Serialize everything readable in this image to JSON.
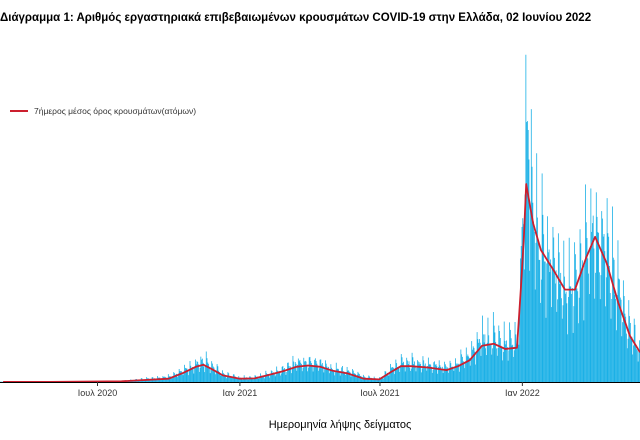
{
  "title": "Διάγραμμα 1: Αριθμός εργαστηριακά επιβεβαιωμένων κρουσμάτων COVID-19 στην Ελλάδα, 02 Ιουνίου 2022",
  "colors": {
    "bars": "#1ab0e6",
    "line": "#cc1f2e",
    "axis": "#000000"
  },
  "chart_data": {
    "type": "bar",
    "title": "Διάγραμμα 1: Αριθμός εργαστηριακά επιβεβαιωμένων κρουσμάτων COVID-19 στην Ελλάδα, 02 Ιουνίου 2022",
    "xlabel": "Ημερομηνία λήψης δείγματος",
    "ylabel": "",
    "x_range": [
      "2020-02-26",
      "2022-06-02"
    ],
    "ylim": [
      0,
      50000
    ],
    "grid": false,
    "legend_placement": "top-left",
    "x_ticks": [
      {
        "date": "2020-07-01",
        "label": "Ιουλ 2020"
      },
      {
        "date": "2021-01-01",
        "label": "Ιαν 2021"
      },
      {
        "date": "2021-07-01",
        "label": "Ιουλ 2021"
      },
      {
        "date": "2022-01-01",
        "label": "Ιαν 2022"
      }
    ],
    "series": [
      {
        "name": "",
        "kind": "daily_bars",
        "points": [
          [
            "2020-03-01",
            40
          ],
          [
            "2020-05-01",
            20
          ],
          [
            "2020-08-01",
            150
          ],
          [
            "2020-10-01",
            800
          ],
          [
            "2020-10-20",
            1800
          ],
          [
            "2020-11-05",
            2700
          ],
          [
            "2020-11-15",
            3200
          ],
          [
            "2020-11-25",
            2500
          ],
          [
            "2020-12-10",
            1300
          ],
          [
            "2021-01-01",
            650
          ],
          [
            "2021-01-20",
            700
          ],
          [
            "2021-02-05",
            1200
          ],
          [
            "2021-02-25",
            1900
          ],
          [
            "2021-03-15",
            2900
          ],
          [
            "2021-03-30",
            3000
          ],
          [
            "2021-04-15",
            2800
          ],
          [
            "2021-05-01",
            2100
          ],
          [
            "2021-05-20",
            1700
          ],
          [
            "2021-06-10",
            800
          ],
          [
            "2021-06-30",
            500
          ],
          [
            "2021-07-15",
            2000
          ],
          [
            "2021-07-28",
            2900
          ],
          [
            "2021-08-10",
            2900
          ],
          [
            "2021-09-01",
            2700
          ],
          [
            "2021-09-25",
            2300
          ],
          [
            "2021-10-10",
            3000
          ],
          [
            "2021-10-25",
            4200
          ],
          [
            "2021-11-10",
            6600
          ],
          [
            "2021-11-25",
            7000
          ],
          [
            "2021-12-10",
            5800
          ],
          [
            "2021-12-25",
            6500
          ],
          [
            "2021-12-30",
            18000
          ],
          [
            "2022-01-03",
            30000
          ],
          [
            "2022-01-06",
            40000
          ],
          [
            "2022-01-15",
            27000
          ],
          [
            "2022-01-25",
            21000
          ],
          [
            "2022-02-10",
            19000
          ],
          [
            "2022-02-25",
            14000
          ],
          [
            "2022-03-10",
            15000
          ],
          [
            "2022-03-25",
            21000
          ],
          [
            "2022-04-05",
            24000
          ],
          [
            "2022-04-20",
            20000
          ],
          [
            "2022-05-05",
            14000
          ],
          [
            "2022-05-20",
            8000
          ],
          [
            "2022-06-02",
            5000
          ]
        ]
      },
      {
        "name": "7ήμερος μέσος όρος κρουσμάτων(ατόμων)",
        "kind": "line",
        "points": [
          [
            "2020-03-01",
            20
          ],
          [
            "2020-05-01",
            10
          ],
          [
            "2020-08-01",
            100
          ],
          [
            "2020-10-01",
            500
          ],
          [
            "2020-10-20",
            1400
          ],
          [
            "2020-11-05",
            2300
          ],
          [
            "2020-11-15",
            2600
          ],
          [
            "2020-11-25",
            2000
          ],
          [
            "2020-12-10",
            1000
          ],
          [
            "2021-01-01",
            500
          ],
          [
            "2021-01-20",
            550
          ],
          [
            "2021-02-05",
            1000
          ],
          [
            "2021-02-25",
            1600
          ],
          [
            "2021-03-15",
            2300
          ],
          [
            "2021-03-30",
            2500
          ],
          [
            "2021-04-15",
            2300
          ],
          [
            "2021-05-01",
            1700
          ],
          [
            "2021-05-20",
            1300
          ],
          [
            "2021-06-10",
            500
          ],
          [
            "2021-06-30",
            400
          ],
          [
            "2021-07-15",
            1500
          ],
          [
            "2021-07-28",
            2400
          ],
          [
            "2021-08-10",
            2400
          ],
          [
            "2021-09-01",
            2200
          ],
          [
            "2021-09-25",
            1800
          ],
          [
            "2021-10-10",
            2400
          ],
          [
            "2021-10-25",
            3300
          ],
          [
            "2021-11-10",
            5500
          ],
          [
            "2021-11-25",
            5800
          ],
          [
            "2021-12-10",
            5000
          ],
          [
            "2021-12-25",
            5200
          ],
          [
            "2021-12-30",
            14000
          ],
          [
            "2022-01-03",
            22000
          ],
          [
            "2022-01-06",
            30000
          ],
          [
            "2022-01-15",
            24000
          ],
          [
            "2022-01-25",
            20000
          ],
          [
            "2022-02-10",
            17000
          ],
          [
            "2022-02-25",
            14000
          ],
          [
            "2022-03-10",
            14000
          ],
          [
            "2022-03-25",
            19000
          ],
          [
            "2022-04-05",
            22000
          ],
          [
            "2022-04-20",
            18000
          ],
          [
            "2022-05-05",
            12000
          ],
          [
            "2022-05-20",
            7000
          ],
          [
            "2022-06-02",
            4500
          ]
        ]
      }
    ]
  }
}
